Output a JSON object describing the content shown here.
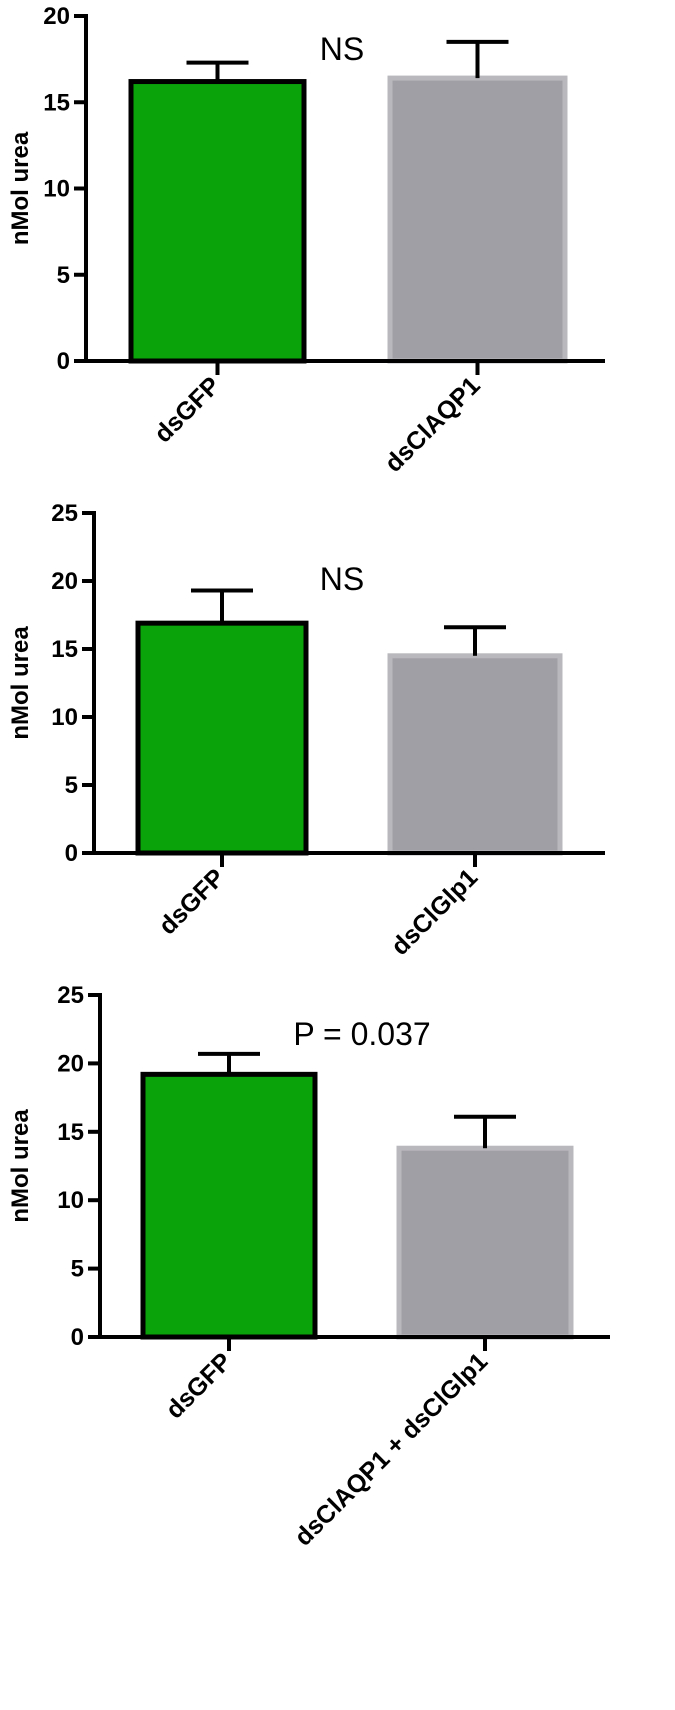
{
  "chart_data": [
    {
      "type": "bar",
      "categories": [
        "dsGFP",
        "dsClAQP1"
      ],
      "values": [
        16.2,
        16.4
      ],
      "errors": [
        1.1,
        2.1
      ],
      "colors": [
        "#0aa30a",
        "#a19fa6"
      ],
      "ylabel": "nMol urea",
      "ylim": [
        0,
        20
      ],
      "yticks": [
        "0",
        "5",
        "10",
        "15",
        "20"
      ],
      "annotation": "NS",
      "grid": false
    },
    {
      "type": "bar",
      "categories": [
        "dsGFP",
        "dsClGlp1"
      ],
      "values": [
        16.9,
        14.5
      ],
      "errors": [
        2.4,
        2.1
      ],
      "colors": [
        "#0aa30a",
        "#a19fa6"
      ],
      "ylabel": "nMol urea",
      "ylim": [
        0,
        25
      ],
      "yticks": [
        "0",
        "5",
        "10",
        "15",
        "20",
        "25"
      ],
      "annotation": "NS",
      "grid": false
    },
    {
      "type": "bar",
      "categories": [
        "dsGFP",
        "dsClAQP1 + dsClGlp1"
      ],
      "values": [
        19.2,
        13.8
      ],
      "errors": [
        1.5,
        2.3
      ],
      "colors": [
        "#0aa30a",
        "#a19fa6"
      ],
      "ylabel": "nMol urea",
      "ylim": [
        0,
        25
      ],
      "yticks": [
        "0",
        "5",
        "10",
        "15",
        "20",
        "25"
      ],
      "annotation": "P = 0.037",
      "grid": false
    }
  ]
}
